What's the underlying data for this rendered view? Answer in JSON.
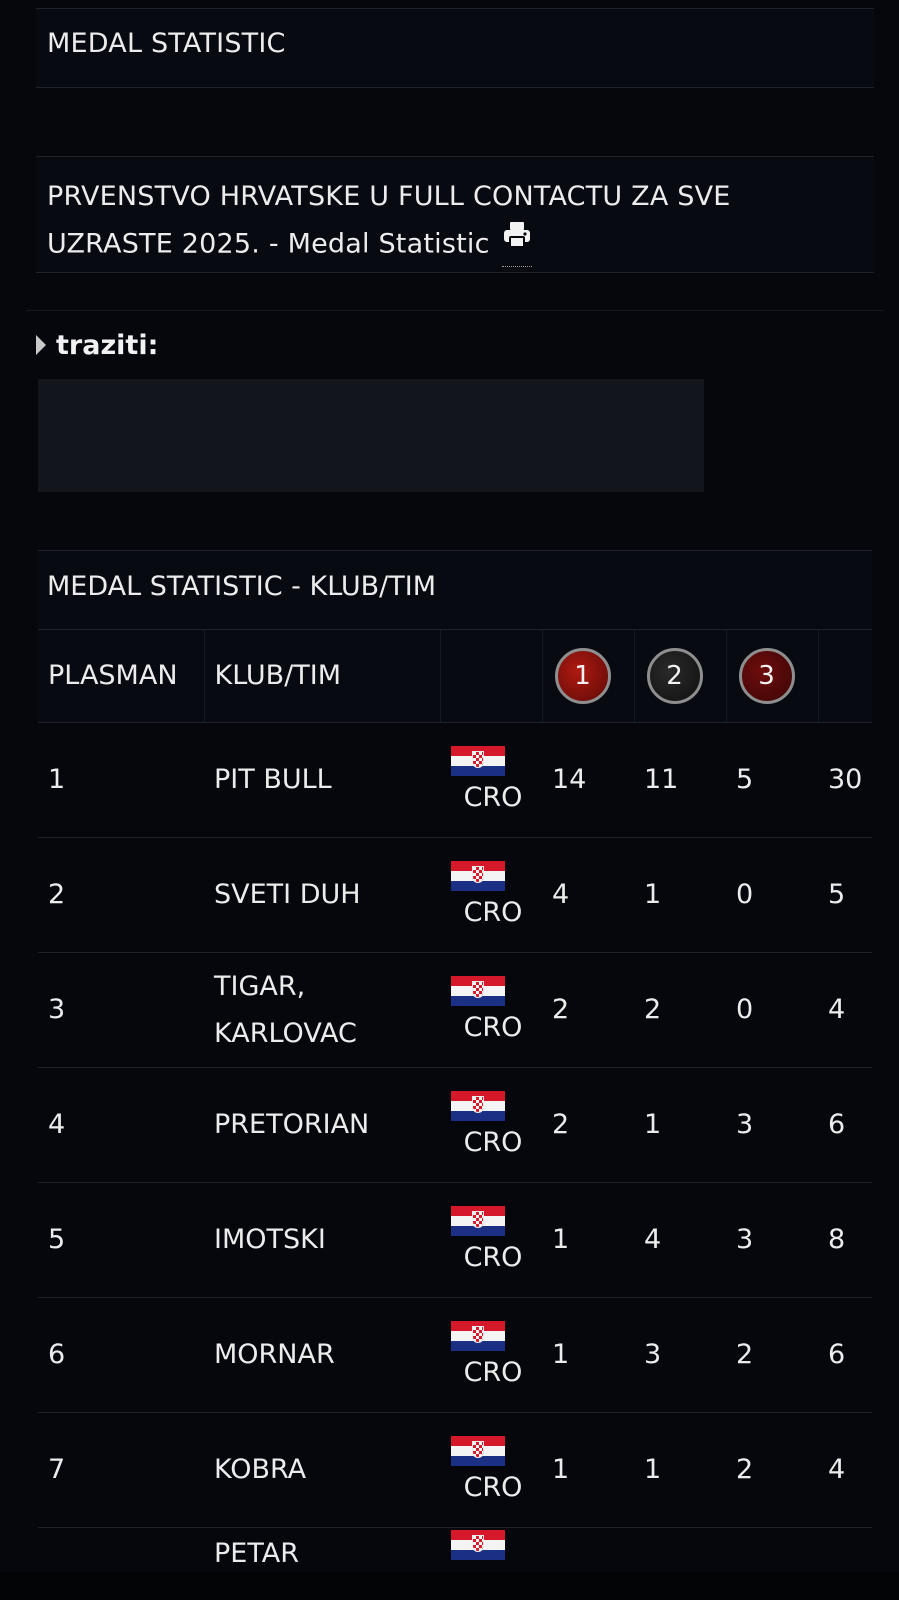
{
  "section_title": "MEDAL STATISTIC",
  "competition_title": "PRVENSTVO HRVATSKE U FULL CONTACTU ZA SVE UZRASTE 2025. - Medal Statistic",
  "filter_label": "traziti:",
  "table_title": "MEDAL STATISTIC - KLUB/TIM",
  "headers": {
    "rank": "PLASMAN",
    "club": "KLUB/TIM",
    "gold": "1",
    "silver": "2",
    "bronze": "3"
  },
  "rows": [
    {
      "rank": "1",
      "club": "PIT BULL",
      "country": "CRO",
      "gold": "14",
      "silver": "11",
      "bronze": "5",
      "total": "30"
    },
    {
      "rank": "2",
      "club": "SVETI DUH",
      "country": "CRO",
      "gold": "4",
      "silver": "1",
      "bronze": "0",
      "total": "5"
    },
    {
      "rank": "3",
      "club": "TIGAR, KARLOVAC",
      "country": "CRO",
      "gold": "2",
      "silver": "2",
      "bronze": "0",
      "total": "4"
    },
    {
      "rank": "4",
      "club": "PRETORIAN",
      "country": "CRO",
      "gold": "2",
      "silver": "1",
      "bronze": "3",
      "total": "6"
    },
    {
      "rank": "5",
      "club": "IMOTSKI",
      "country": "CRO",
      "gold": "1",
      "silver": "4",
      "bronze": "3",
      "total": "8"
    },
    {
      "rank": "6",
      "club": "MORNAR",
      "country": "CRO",
      "gold": "1",
      "silver": "3",
      "bronze": "2",
      "total": "6"
    },
    {
      "rank": "7",
      "club": "KOBRA",
      "country": "CRO",
      "gold": "1",
      "silver": "1",
      "bronze": "2",
      "total": "4"
    },
    {
      "rank": "",
      "club": "PETAR",
      "country": "",
      "gold": "",
      "silver": "",
      "bronze": "",
      "total": ""
    }
  ],
  "icons": {
    "print": "print-icon",
    "expand": "triangle-right-icon",
    "flag": "croatia-flag-icon"
  },
  "colors": {
    "background": "#05070d",
    "gold_medal": "#b01a12",
    "silver_medal": "#2a2a2a",
    "bronze_medal": "#6f0d0d"
  }
}
